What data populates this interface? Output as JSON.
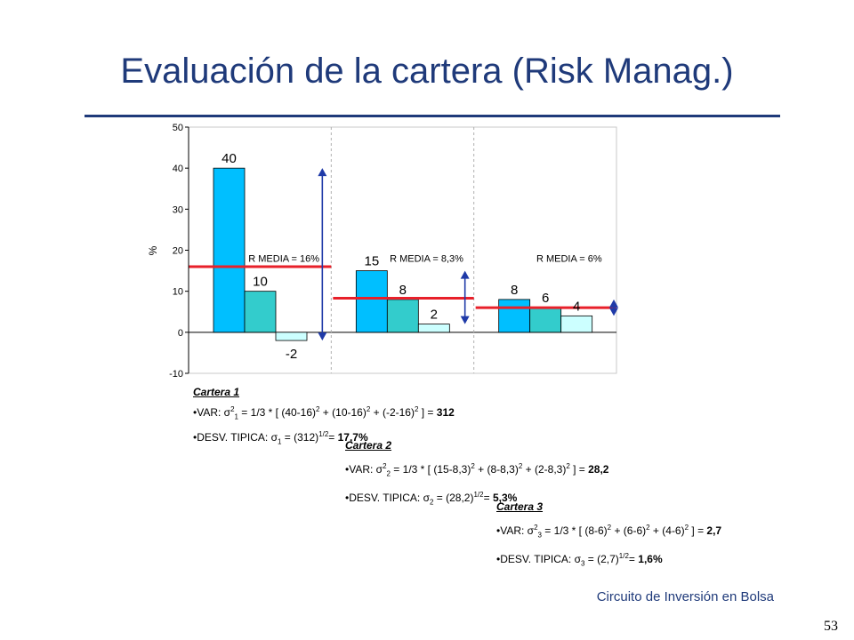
{
  "slide": {
    "title": "Evaluación de la cartera (Risk Manag.)",
    "footer": "Circuito de Inversión en Bolsa",
    "page_number": "53"
  },
  "chart_data": {
    "type": "bar",
    "ylabel": "%",
    "ylim": [
      -10,
      50
    ],
    "yticks": [
      -10,
      0,
      10,
      20,
      30,
      40,
      50
    ],
    "groups": [
      {
        "values": [
          40,
          10,
          -2
        ],
        "value_labels": [
          "40",
          "10",
          "-2"
        ],
        "mean": 16,
        "mean_label": "R MEDIA = 16%"
      },
      {
        "values": [
          15,
          8,
          2
        ],
        "value_labels": [
          "15",
          "8",
          "2"
        ],
        "mean": 8.3,
        "mean_label": "R MEDIA = 8,3%"
      },
      {
        "values": [
          8,
          6,
          4
        ],
        "value_labels": [
          "8",
          "6",
          "4"
        ],
        "mean": 6,
        "mean_label": "R MEDIA = 6%"
      }
    ],
    "colors": {
      "bar1": "#00bfff",
      "bar2": "#33cccc",
      "bar3": "#ccffff",
      "mean_line": "#e8202a",
      "arrow": "#1f3aa8"
    }
  },
  "notes": {
    "cartera1": {
      "title": "Cartera 1",
      "var_prefix": "•VAR: σ",
      "var_body": " = 1/3 * [ (40-16)",
      "var_t2": " + (10-16)",
      "var_t3": " + (-2-16)",
      "var_end": " ] = ",
      "var_value": "312",
      "desv_prefix": "•DESV. TIPICA: σ",
      "desv_body": " = (312)",
      "desv_exp": "1/2",
      "desv_end": "= ",
      "desv_value": "17,7%"
    },
    "cartera2": {
      "title": "Cartera 2",
      "var_prefix": "•VAR: σ",
      "var_body": " = 1/3 * [ (15-8,3)",
      "var_t2": " + (8-8,3)",
      "var_t3": " + (2-8,3)",
      "var_end": " ] = ",
      "var_value": "28,2",
      "desv_prefix": "•DESV. TIPICA: σ",
      "desv_body": " = (28,2)",
      "desv_exp": "1/2",
      "desv_end": "= ",
      "desv_value": "5,3%"
    },
    "cartera3": {
      "title": "Cartera 3",
      "var_prefix": "•VAR: σ",
      "var_body": " = 1/3 * [ (8-6)",
      "var_t2": " + (6-6)",
      "var_t3": " + (4-6)",
      "var_end": " ] = ",
      "var_value": "2,7",
      "desv_prefix": "•DESV. TIPICA: σ",
      "desv_body": " = (2,7)",
      "desv_exp": "1/2",
      "desv_end": "= ",
      "desv_value": "1,6%"
    },
    "sup2": "2",
    "sub1": "1",
    "sub2": "2",
    "sub3": "3"
  }
}
